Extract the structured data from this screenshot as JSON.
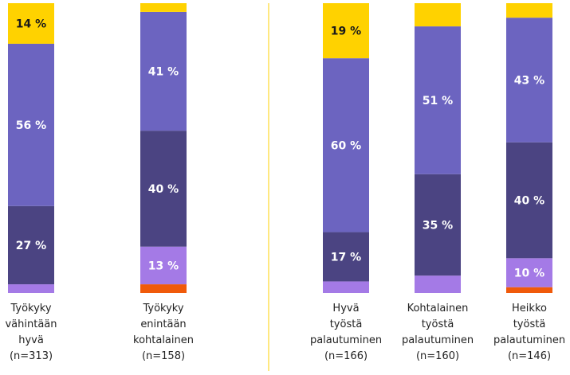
{
  "chart_data": {
    "type": "stacked_bar",
    "categories": [
      "Työkyky\nvähintään\nhyvä\n(n=313)",
      "Työkyky\nenintään\nkohtalainen\n(n=158)",
      "Hyvä\ntyöstä\npalautuminen\n(n=166)",
      "Kohtalainen\ntyöstä\npalautuminen\n(n=160)",
      "Heikko\ntyöstä\npalautuminen\n(n=146)"
    ],
    "ylim": [
      0,
      100
    ],
    "series": [
      {
        "color": "#f05a0a",
        "values": [
          0,
          3,
          0,
          0,
          2
        ],
        "value_labels": [
          null,
          null,
          null,
          null,
          null
        ]
      },
      {
        "color": "#a47ae6",
        "values": [
          3,
          13,
          4,
          6,
          10
        ],
        "value_labels": [
          null,
          "13 %",
          null,
          null,
          "10 %"
        ]
      },
      {
        "color": "#4b4482",
        "values": [
          27,
          40,
          17,
          35,
          40
        ],
        "value_labels": [
          "27 %",
          "40 %",
          "17 %",
          "35 %",
          "40 %"
        ]
      },
      {
        "color": "#6c64c0",
        "values": [
          56,
          41,
          60,
          51,
          43
        ],
        "value_labels": [
          "56 %",
          "41 %",
          "60 %",
          "51 %",
          "43 %"
        ]
      },
      {
        "color": "#ffd200",
        "values": [
          14,
          3,
          19,
          8,
          5
        ],
        "value_labels": [
          "14 %",
          null,
          "19 %",
          null,
          null
        ]
      }
    ]
  }
}
